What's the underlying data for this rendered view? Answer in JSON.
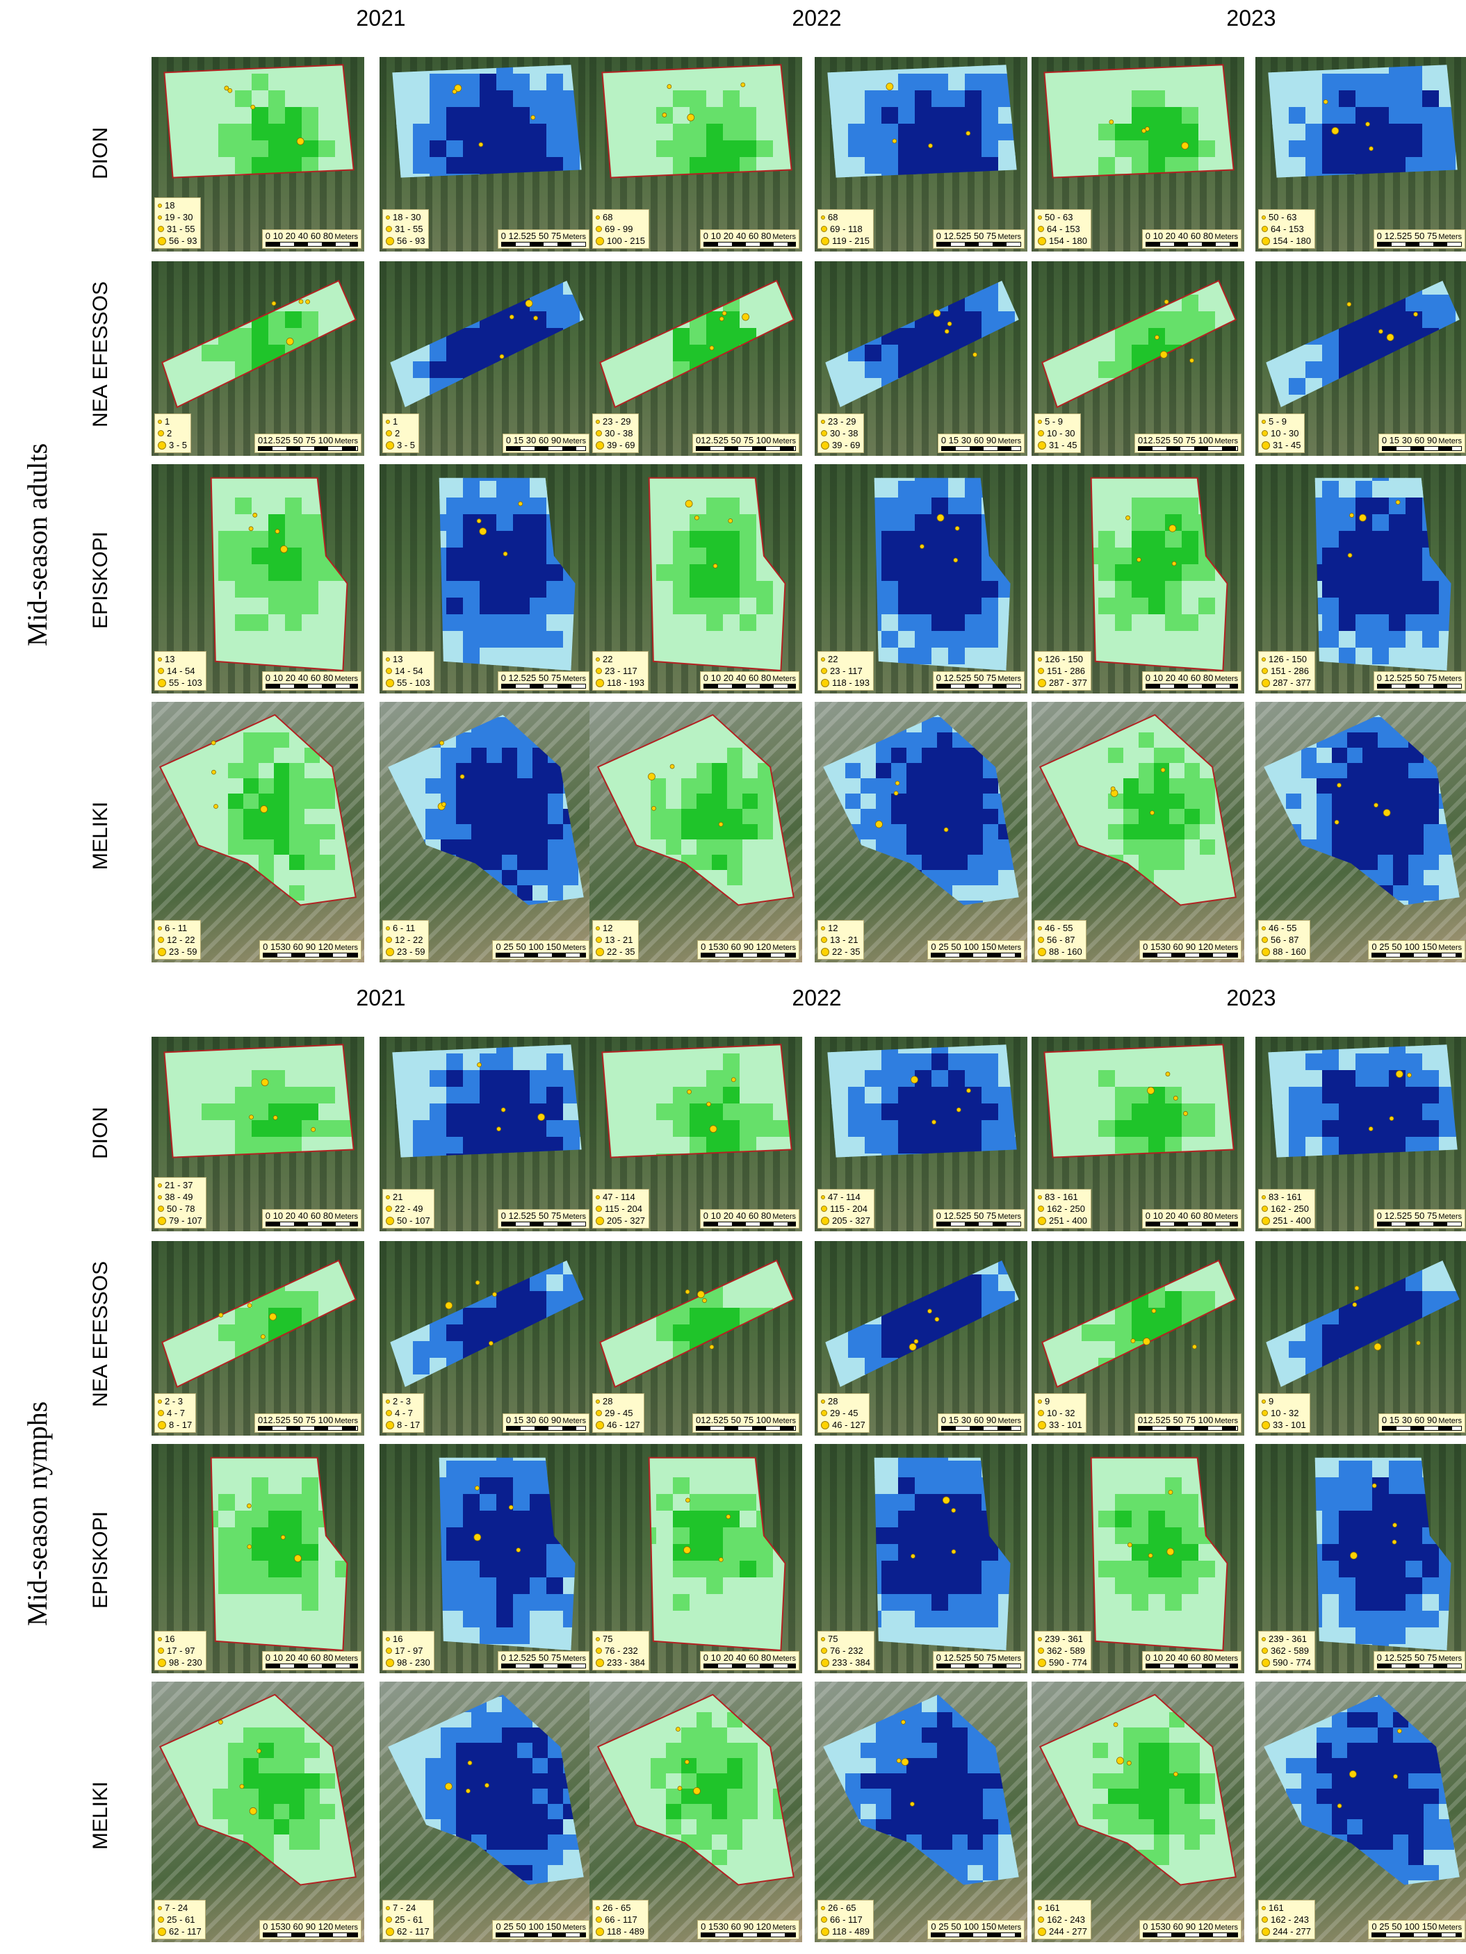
{
  "sections": [
    {
      "title": "Mid-season adults",
      "years": [
        "2021",
        "2022",
        "2023"
      ],
      "sites": [
        {
          "name": "DION",
          "scale_unit": "Meters",
          "panels": [
            {
              "legend": [
                "18",
                "19 - 30",
                "31 - 55",
                "56 - 93"
              ],
              "scale": "0 10 20  40  60  80"
            },
            {
              "legend": [
                "18 - 30",
                "31 - 55",
                "56 - 93"
              ],
              "scale": "0 12.525  50  75"
            },
            {
              "legend": [
                "68",
                "69 - 99",
                "100 - 215"
              ],
              "scale": "0 10 20  40  60  80"
            },
            {
              "legend": [
                "68",
                "69 - 118",
                "119 - 215"
              ],
              "scale": "0 12.525  50  75"
            },
            {
              "legend": [
                "50 - 63",
                "64 - 153",
                "154 - 180"
              ],
              "scale": "0 10 20  40  60  80"
            },
            {
              "legend": [
                "50 - 63",
                "64 - 153",
                "154 - 180"
              ],
              "scale": "0 12.525  50  75"
            }
          ]
        },
        {
          "name": "NEA EFESSOS",
          "scale_unit": "Meters",
          "panels": [
            {
              "legend": [
                "1",
                "2",
                "3 - 5"
              ],
              "scale": "012.525  50  75  100"
            },
            {
              "legend": [
                "1",
                "2",
                "3 - 5"
              ],
              "scale": "0 15 30  60  90"
            },
            {
              "legend": [
                "23 - 29",
                "30 - 38",
                "39 - 69"
              ],
              "scale": "012.525  50  75  100"
            },
            {
              "legend": [
                "23 - 29",
                "30 - 38",
                "39 - 69"
              ],
              "scale": "0 15 30  60  90"
            },
            {
              "legend": [
                "5 - 9",
                "10 - 30",
                "31 - 45"
              ],
              "scale": "012.525  50  75  100"
            },
            {
              "legend": [
                "5 - 9",
                "10 - 30",
                "31 - 45"
              ],
              "scale": "0 15 30  60  90"
            }
          ]
        },
        {
          "name": "EPISKOPI",
          "scale_unit": "Meters",
          "panels": [
            {
              "legend": [
                "13",
                "14 - 54",
                "55 - 103"
              ],
              "scale": "0 10 20  40  60  80"
            },
            {
              "legend": [
                "13",
                "14 - 54",
                "55 - 103"
              ],
              "scale": "0 12.525  50  75"
            },
            {
              "legend": [
                "22",
                "23 - 117",
                "118 - 193"
              ],
              "scale": "0 10 20  40  60  80"
            },
            {
              "legend": [
                "22",
                "23 - 117",
                "118 - 193"
              ],
              "scale": "0 12.525  50  75"
            },
            {
              "legend": [
                "126 - 150",
                "151 - 286",
                "287 - 377"
              ],
              "scale": "0 10 20  40  60  80"
            },
            {
              "legend": [
                "126 - 150",
                "151 - 286",
                "287 - 377"
              ],
              "scale": "0 12.525  50  75"
            }
          ]
        },
        {
          "name": "MELIKI",
          "scale_unit": "Meters",
          "panels": [
            {
              "legend": [
                "6 - 11",
                "12 - 22",
                "23 - 59"
              ],
              "scale": "0 1530  60  90  120"
            },
            {
              "legend": [
                "6 - 11",
                "12 - 22",
                "23 - 59"
              ],
              "scale": "0  25  50  100  150"
            },
            {
              "legend": [
                "12",
                "13 - 21",
                "22 - 35"
              ],
              "scale": "0 1530  60  90  120"
            },
            {
              "legend": [
                "12",
                "13 - 21",
                "22 - 35"
              ],
              "scale": "0  25  50  100  150"
            },
            {
              "legend": [
                "46 - 55",
                "56 - 87",
                "88 - 160"
              ],
              "scale": "0 1530  60  90  120"
            },
            {
              "legend": [
                "46 - 55",
                "56 - 87",
                "88 - 160"
              ],
              "scale": "0  25  50  100  150"
            }
          ]
        }
      ]
    },
    {
      "title": "Mid-season nymphs",
      "years": [
        "2021",
        "2022",
        "2023"
      ],
      "sites": [
        {
          "name": "DION",
          "scale_unit": "Meters",
          "panels": [
            {
              "legend": [
                "21 - 37",
                "38 - 49",
                "50 - 78",
                "79 - 107"
              ],
              "scale": "0 10 20  40  60  80"
            },
            {
              "legend": [
                "21",
                "22 - 49",
                "50 - 107"
              ],
              "scale": "0 12.525  50  75"
            },
            {
              "legend": [
                "47 - 114",
                "115 - 204",
                "205 - 327"
              ],
              "scale": "0 10 20  40  60  80"
            },
            {
              "legend": [
                "47 - 114",
                "115 - 204",
                "205 - 327"
              ],
              "scale": "0 12.525  50  75"
            },
            {
              "legend": [
                "83 - 161",
                "162 - 250",
                "251 - 400"
              ],
              "scale": "0 10 20  40  60  80"
            },
            {
              "legend": [
                "83 - 161",
                "162 - 250",
                "251 - 400"
              ],
              "scale": "0 12.525  50  75"
            }
          ]
        },
        {
          "name": "NEA EFESSOS",
          "scale_unit": "Meters",
          "panels": [
            {
              "legend": [
                "2 - 3",
                "4 - 7",
                "8 - 17"
              ],
              "scale": "012.525  50  75  100"
            },
            {
              "legend": [
                "2 - 3",
                "4 - 7",
                "8 - 17"
              ],
              "scale": "0 15 30  60  90"
            },
            {
              "legend": [
                "28",
                "29 - 45",
                "46 - 127"
              ],
              "scale": "012.525  50  75  100"
            },
            {
              "legend": [
                "28",
                "29 - 45",
                "46 - 127"
              ],
              "scale": "0 15 30  60  90"
            },
            {
              "legend": [
                "9",
                "10 - 32",
                "33 - 101"
              ],
              "scale": "012.525  50  75  100"
            },
            {
              "legend": [
                "9",
                "10 - 32",
                "33 - 101"
              ],
              "scale": "0 15 30  60  90"
            }
          ]
        },
        {
          "name": "EPISKOPI",
          "scale_unit": "Meters",
          "panels": [
            {
              "legend": [
                "16",
                "17 - 97",
                "98 - 230"
              ],
              "scale": "0 10 20  40  60  80"
            },
            {
              "legend": [
                "16",
                "17 - 97",
                "98 - 230"
              ],
              "scale": "0 12.525  50  75"
            },
            {
              "legend": [
                "75",
                "76 - 232",
                "233 - 384"
              ],
              "scale": "0 10 20  40  60  80"
            },
            {
              "legend": [
                "75",
                "76 - 232",
                "233 - 384"
              ],
              "scale": "0 12.525  50  75"
            },
            {
              "legend": [
                "239 - 361",
                "362 - 589",
                "590 - 774"
              ],
              "scale": "0 10 20  40  60  80"
            },
            {
              "legend": [
                "239 - 361",
                "362 - 589",
                "590 - 774"
              ],
              "scale": "0 12.525  50  75"
            }
          ]
        },
        {
          "name": "MELIKI",
          "scale_unit": "Meters",
          "panels": [
            {
              "legend": [
                "7 - 24",
                "25 - 61",
                "62 - 117"
              ],
              "scale": "0 1530  60  90  120"
            },
            {
              "legend": [
                "7 - 24",
                "25 - 61",
                "62 - 117"
              ],
              "scale": "0  25  50  100  150"
            },
            {
              "legend": [
                "26 - 65",
                "66 - 117",
                "118 - 489"
              ],
              "scale": "0 1530  60  90  120"
            },
            {
              "legend": [
                "26 - 65",
                "66 - 117",
                "118 - 489"
              ],
              "scale": "0  25  50  100  150"
            },
            {
              "legend": [
                "161",
                "162 - 243",
                "244 - 277"
              ],
              "scale": "0 1530  60  90  120"
            },
            {
              "legend": [
                "161",
                "162 - 243",
                "244 - 277"
              ],
              "scale": "0  25  50  100  150"
            }
          ]
        }
      ]
    }
  ],
  "colors": {
    "green_light": "#b8f2c4",
    "green_mid": "#66e06a",
    "green_dark": "#1fc42a",
    "blue_light": "#aee3ee",
    "blue_mid": "#2f7ee0",
    "blue_dark": "#0a1f8f",
    "boundary": "#b22222",
    "point": "#ffd200"
  }
}
